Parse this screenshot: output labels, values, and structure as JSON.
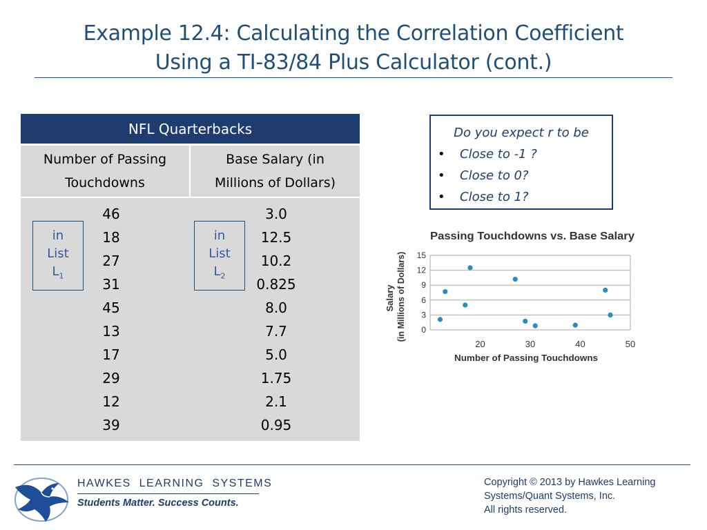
{
  "slide": {
    "title_line1": "Example 12.4: Calculating the Correlation Coefficient",
    "title_line2": "Using a TI-83/84 Plus Calculator (cont.)"
  },
  "table": {
    "header": "NFL Quarterbacks",
    "col1_head_line1": "Number of Passing",
    "col1_head_line2": "Touchdowns",
    "col2_head_line1": "Base Salary (in",
    "col2_head_line2": "Millions of Dollars)",
    "touchdowns": [
      "46",
      "18",
      "27",
      "31",
      "45",
      "13",
      "17",
      "29",
      "12",
      "39"
    ],
    "salaries": [
      "3.0",
      "12.5",
      "10.2",
      "0.825",
      "8.0",
      "7.7",
      "5.0",
      "1.75",
      "2.1",
      "0.95"
    ],
    "list1": {
      "line1": "in",
      "line2": "List",
      "letter": "L",
      "sub": "1"
    },
    "list2": {
      "line1": "in",
      "line2": "List",
      "letter": "L",
      "sub": "2"
    }
  },
  "question": {
    "title": "Do you expect r to be",
    "options": [
      "Close to -1 ?",
      "Close to 0?",
      "Close to 1?"
    ],
    "bullet": "•"
  },
  "chart_data": {
    "type": "scatter",
    "title": "Passing Touchdowns vs. Base Salary",
    "xlabel": "Number of Passing Touchdowns",
    "ylabel_line1": "Salary",
    "ylabel_line2": "(in Millions of Dollars)",
    "xlim": [
      10,
      50
    ],
    "ylim": [
      0,
      15
    ],
    "xticks": [
      20,
      30,
      40,
      50
    ],
    "yticks": [
      0,
      3,
      6,
      9,
      12,
      15
    ],
    "grid": true,
    "point_color": "#2a8bc8",
    "points": [
      {
        "x": 46,
        "y": 3.0
      },
      {
        "x": 18,
        "y": 12.5
      },
      {
        "x": 27,
        "y": 10.2
      },
      {
        "x": 31,
        "y": 0.825
      },
      {
        "x": 45,
        "y": 8.0
      },
      {
        "x": 13,
        "y": 7.7
      },
      {
        "x": 17,
        "y": 5.0
      },
      {
        "x": 29,
        "y": 1.75
      },
      {
        "x": 12,
        "y": 2.1
      },
      {
        "x": 39,
        "y": 0.95
      }
    ]
  },
  "footer": {
    "brand": "HAWKES  LEARNING  SYSTEMS",
    "tagline": "Students Matter. Success Counts.",
    "copyright_line1": "Copyright © 2013 by Hawkes Learning",
    "copyright_line2": "Systems/Quant Systems, Inc.",
    "copyright_line3": "All rights reserved.",
    "logo_icon": "eagle-logo-icon"
  },
  "colors": {
    "title": "#1f4e79",
    "table_header": "#1f3c6e",
    "table_body": "#d9d9d9"
  }
}
